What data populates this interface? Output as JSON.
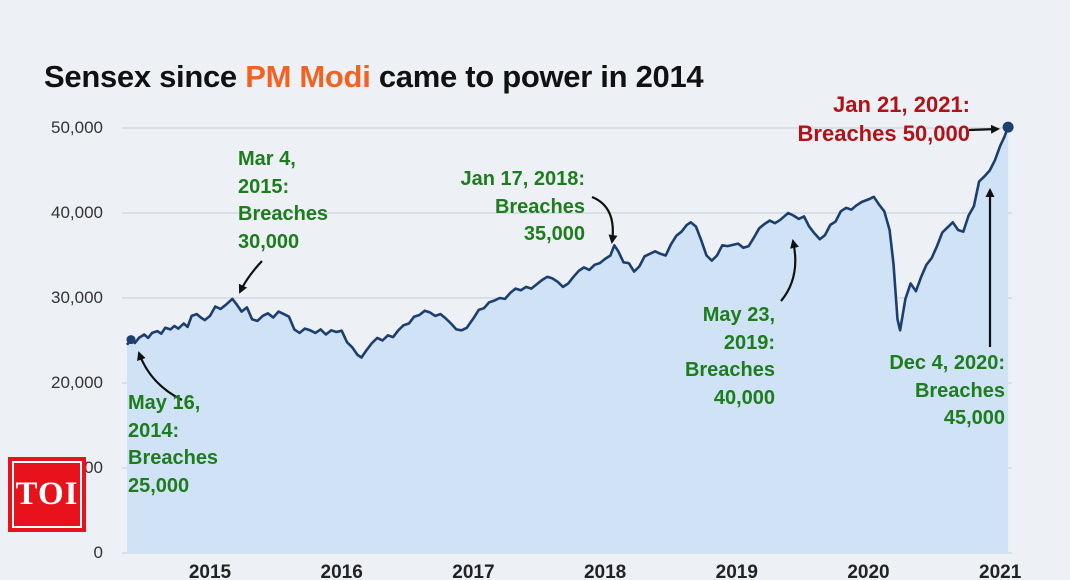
{
  "title": {
    "prefix": "Sensex since ",
    "highlight": "PM Modi",
    "suffix": " came to power in 2014"
  },
  "logo": {
    "text": "TOI"
  },
  "colors": {
    "background": "#edf1f6",
    "line": "#1c3f6e",
    "area_fill": "#cfe2f6",
    "grid": "#c7cdd7",
    "annotation_green": "#1d7d1d",
    "annotation_red": "#b11217",
    "title_highlight_orange": "#f26322",
    "logo_red": "#e8121c"
  },
  "chart_data": {
    "type": "area",
    "title": "Sensex since PM Modi came to power in 2014",
    "xlabel": "",
    "ylabel": "",
    "grid": true,
    "legend": "none",
    "ylim": [
      0,
      50000
    ],
    "xlim": [
      2014.36,
      2021.08
    ],
    "x_ticks": [
      {
        "value": 2015,
        "label": "2015"
      },
      {
        "value": 2016,
        "label": "2016"
      },
      {
        "value": 2017,
        "label": "2017"
      },
      {
        "value": 2018,
        "label": "2018"
      },
      {
        "value": 2019,
        "label": "2019"
      },
      {
        "value": 2020,
        "label": "2020"
      },
      {
        "value": 2021,
        "label": "2021"
      }
    ],
    "y_ticks": [
      {
        "value": 50000,
        "label": "50,000"
      },
      {
        "value": 40000,
        "label": "40,000"
      },
      {
        "value": 30000,
        "label": "30,000"
      },
      {
        "value": 20000,
        "label": "20,000"
      },
      {
        "value": 10000,
        "label": "10,000"
      },
      {
        "value": 0,
        "label": "0"
      }
    ],
    "series": [
      {
        "name": "Sensex",
        "points": [
          [
            2014.37,
            24500
          ],
          [
            2014.4,
            25100
          ],
          [
            2014.43,
            24700
          ],
          [
            2014.46,
            25300
          ],
          [
            2014.5,
            25700
          ],
          [
            2014.53,
            25300
          ],
          [
            2014.56,
            25900
          ],
          [
            2014.6,
            26100
          ],
          [
            2014.63,
            25800
          ],
          [
            2014.66,
            26500
          ],
          [
            2014.7,
            26300
          ],
          [
            2014.73,
            26700
          ],
          [
            2014.76,
            26400
          ],
          [
            2014.8,
            27000
          ],
          [
            2014.83,
            26600
          ],
          [
            2014.86,
            27900
          ],
          [
            2014.9,
            28100
          ],
          [
            2014.93,
            27700
          ],
          [
            2014.96,
            27400
          ],
          [
            2015.0,
            27900
          ],
          [
            2015.04,
            29000
          ],
          [
            2015.08,
            28700
          ],
          [
            2015.12,
            29200
          ],
          [
            2015.17,
            29900
          ],
          [
            2015.2,
            29300
          ],
          [
            2015.24,
            28400
          ],
          [
            2015.28,
            28900
          ],
          [
            2015.32,
            27500
          ],
          [
            2015.36,
            27300
          ],
          [
            2015.4,
            27900
          ],
          [
            2015.44,
            28200
          ],
          [
            2015.48,
            27700
          ],
          [
            2015.52,
            28400
          ],
          [
            2015.56,
            28100
          ],
          [
            2015.6,
            27800
          ],
          [
            2015.64,
            26300
          ],
          [
            2015.68,
            25900
          ],
          [
            2015.72,
            26400
          ],
          [
            2015.76,
            26200
          ],
          [
            2015.8,
            25900
          ],
          [
            2015.84,
            26300
          ],
          [
            2015.88,
            25700
          ],
          [
            2015.92,
            26200
          ],
          [
            2015.96,
            26000
          ],
          [
            2016.0,
            26150
          ],
          [
            2016.04,
            24800
          ],
          [
            2016.08,
            24200
          ],
          [
            2016.12,
            23300
          ],
          [
            2016.15,
            23000
          ],
          [
            2016.19,
            23900
          ],
          [
            2016.23,
            24700
          ],
          [
            2016.27,
            25300
          ],
          [
            2016.31,
            25000
          ],
          [
            2016.35,
            25600
          ],
          [
            2016.39,
            25400
          ],
          [
            2016.43,
            26200
          ],
          [
            2016.47,
            26800
          ],
          [
            2016.51,
            27000
          ],
          [
            2016.55,
            27800
          ],
          [
            2016.59,
            28000
          ],
          [
            2016.63,
            28500
          ],
          [
            2016.67,
            28300
          ],
          [
            2016.71,
            27900
          ],
          [
            2016.75,
            28100
          ],
          [
            2016.79,
            27600
          ],
          [
            2016.83,
            27000
          ],
          [
            2016.87,
            26300
          ],
          [
            2016.91,
            26200
          ],
          [
            2016.95,
            26500
          ],
          [
            2017.0,
            27600
          ],
          [
            2017.04,
            28600
          ],
          [
            2017.08,
            28800
          ],
          [
            2017.12,
            29500
          ],
          [
            2017.16,
            29700
          ],
          [
            2017.2,
            30000
          ],
          [
            2017.24,
            29900
          ],
          [
            2017.28,
            30600
          ],
          [
            2017.32,
            31100
          ],
          [
            2017.36,
            30900
          ],
          [
            2017.4,
            31300
          ],
          [
            2017.44,
            31100
          ],
          [
            2017.48,
            31600
          ],
          [
            2017.52,
            32100
          ],
          [
            2017.56,
            32500
          ],
          [
            2017.6,
            32300
          ],
          [
            2017.64,
            31900
          ],
          [
            2017.68,
            31300
          ],
          [
            2017.72,
            31700
          ],
          [
            2017.76,
            32500
          ],
          [
            2017.8,
            33200
          ],
          [
            2017.84,
            33600
          ],
          [
            2017.88,
            33300
          ],
          [
            2017.92,
            33900
          ],
          [
            2017.96,
            34100
          ],
          [
            2018.0,
            34600
          ],
          [
            2018.04,
            35000
          ],
          [
            2018.07,
            36200
          ],
          [
            2018.1,
            35500
          ],
          [
            2018.14,
            34200
          ],
          [
            2018.18,
            34100
          ],
          [
            2018.22,
            33100
          ],
          [
            2018.26,
            33700
          ],
          [
            2018.3,
            34900
          ],
          [
            2018.34,
            35200
          ],
          [
            2018.38,
            35500
          ],
          [
            2018.42,
            35200
          ],
          [
            2018.46,
            35000
          ],
          [
            2018.5,
            36300
          ],
          [
            2018.54,
            37300
          ],
          [
            2018.58,
            37800
          ],
          [
            2018.62,
            38600
          ],
          [
            2018.65,
            38900
          ],
          [
            2018.69,
            38400
          ],
          [
            2018.73,
            36800
          ],
          [
            2018.77,
            35000
          ],
          [
            2018.81,
            34400
          ],
          [
            2018.85,
            35000
          ],
          [
            2018.89,
            36200
          ],
          [
            2018.93,
            36100
          ],
          [
            2018.97,
            36250
          ],
          [
            2019.01,
            36400
          ],
          [
            2019.05,
            35900
          ],
          [
            2019.09,
            36100
          ],
          [
            2019.13,
            37100
          ],
          [
            2019.17,
            38200
          ],
          [
            2019.21,
            38700
          ],
          [
            2019.25,
            39100
          ],
          [
            2019.29,
            38800
          ],
          [
            2019.33,
            39200
          ],
          [
            2019.39,
            40000
          ],
          [
            2019.43,
            39700
          ],
          [
            2019.47,
            39300
          ],
          [
            2019.51,
            39600
          ],
          [
            2019.55,
            38400
          ],
          [
            2019.59,
            37600
          ],
          [
            2019.63,
            36900
          ],
          [
            2019.67,
            37400
          ],
          [
            2019.71,
            38600
          ],
          [
            2019.75,
            39000
          ],
          [
            2019.79,
            40200
          ],
          [
            2019.83,
            40600
          ],
          [
            2019.87,
            40400
          ],
          [
            2019.91,
            40900
          ],
          [
            2019.95,
            41300
          ],
          [
            2020.0,
            41600
          ],
          [
            2020.04,
            41900
          ],
          [
            2020.08,
            41000
          ],
          [
            2020.12,
            40200
          ],
          [
            2020.16,
            38000
          ],
          [
            2020.19,
            34000
          ],
          [
            2020.22,
            27500
          ],
          [
            2020.24,
            26200
          ],
          [
            2020.28,
            29900
          ],
          [
            2020.32,
            31700
          ],
          [
            2020.36,
            30800
          ],
          [
            2020.4,
            32500
          ],
          [
            2020.44,
            33900
          ],
          [
            2020.48,
            34700
          ],
          [
            2020.52,
            36100
          ],
          [
            2020.56,
            37700
          ],
          [
            2020.6,
            38300
          ],
          [
            2020.64,
            38900
          ],
          [
            2020.68,
            38000
          ],
          [
            2020.72,
            37800
          ],
          [
            2020.76,
            39700
          ],
          [
            2020.8,
            40800
          ],
          [
            2020.84,
            43700
          ],
          [
            2020.88,
            44300
          ],
          [
            2020.92,
            45000
          ],
          [
            2020.96,
            46200
          ],
          [
            2021.0,
            47900
          ],
          [
            2021.03,
            48900
          ],
          [
            2021.06,
            50100
          ]
        ]
      }
    ],
    "markers": [
      {
        "x": 2014.4,
        "y": 25100,
        "label": "start"
      },
      {
        "x": 2021.06,
        "y": 50100,
        "label": "end"
      }
    ],
    "annotations": [
      {
        "id": "breach-25000",
        "color": "#1d7d1d",
        "text": "May 16,\n2014:\nBreaches\n25,000"
      },
      {
        "id": "breach-30000",
        "color": "#1d7d1d",
        "text": "Mar 4,\n2015:\nBreaches\n30,000"
      },
      {
        "id": "breach-35000",
        "color": "#1d7d1d",
        "text": "Jan 17, 2018:\nBreaches\n35,000"
      },
      {
        "id": "breach-40000",
        "color": "#1d7d1d",
        "text": "May 23,\n2019:\nBreaches\n40,000"
      },
      {
        "id": "breach-45000",
        "color": "#1d7d1d",
        "text": "Dec 4, 2020:\nBreaches\n45,000"
      },
      {
        "id": "breach-50000",
        "color": "#b11217",
        "text": "Jan 21, 2021:\nBreaches 50,000"
      }
    ]
  }
}
